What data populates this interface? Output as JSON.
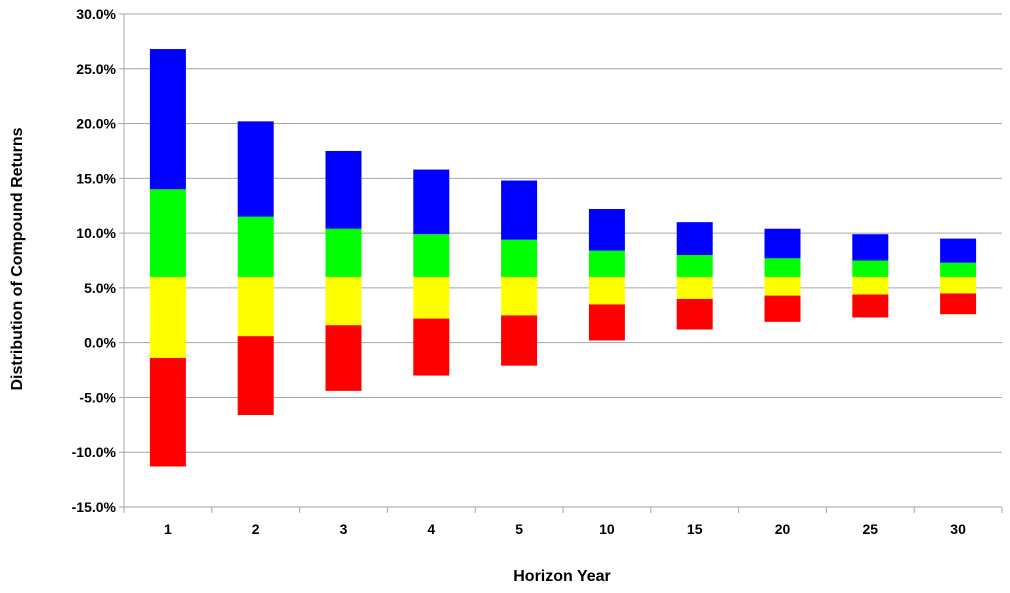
{
  "chart_data": {
    "type": "bar",
    "stacked": true,
    "title": "",
    "xlabel": "Horizon Year",
    "ylabel": "Distribution of Compound Returns",
    "categories": [
      "1",
      "2",
      "3",
      "4",
      "5",
      "10",
      "15",
      "20",
      "25",
      "30"
    ],
    "ylim": [
      -15.0,
      30.0
    ],
    "yticks": [
      -15.0,
      -10.0,
      -5.0,
      0.0,
      5.0,
      10.0,
      15.0,
      20.0,
      25.0,
      30.0
    ],
    "ytick_labels": [
      "-15.0%",
      "-10.0%",
      "-5.0%",
      "0.0%",
      "5.0%",
      "10.0%",
      "15.0%",
      "20.0%",
      "25.0%",
      "30.0%"
    ],
    "boundaries": {
      "lowest": [
        -11.3,
        -6.6,
        -4.4,
        -3.0,
        -2.1,
        0.2,
        1.2,
        1.9,
        2.3,
        2.6
      ],
      "lower": [
        -1.4,
        0.6,
        1.6,
        2.2,
        2.5,
        3.5,
        4.0,
        4.3,
        4.4,
        4.5
      ],
      "middle": [
        6.0,
        6.0,
        6.0,
        6.0,
        6.0,
        6.0,
        6.0,
        6.0,
        6.0,
        6.0
      ],
      "upper": [
        14.0,
        11.5,
        10.4,
        9.9,
        9.4,
        8.4,
        8.0,
        7.7,
        7.5,
        7.3
      ],
      "highest": [
        26.8,
        20.2,
        17.5,
        15.8,
        14.8,
        12.2,
        11.0,
        10.4,
        9.9,
        9.5
      ]
    },
    "series": [
      {
        "key": "red",
        "color": "#ff0000",
        "from": "lowest",
        "to": "lower"
      },
      {
        "key": "yellow",
        "color": "#ffff00",
        "from": "lower",
        "to": "middle"
      },
      {
        "key": "green",
        "color": "#00ff00",
        "from": "middle",
        "to": "upper"
      },
      {
        "key": "blue",
        "color": "#0000ff",
        "from": "upper",
        "to": "highest"
      }
    ],
    "grid": true,
    "legend": "none",
    "colors": {
      "grid": "#a6a6a6",
      "axis": "#a6a6a6",
      "text": "#000000"
    }
  }
}
